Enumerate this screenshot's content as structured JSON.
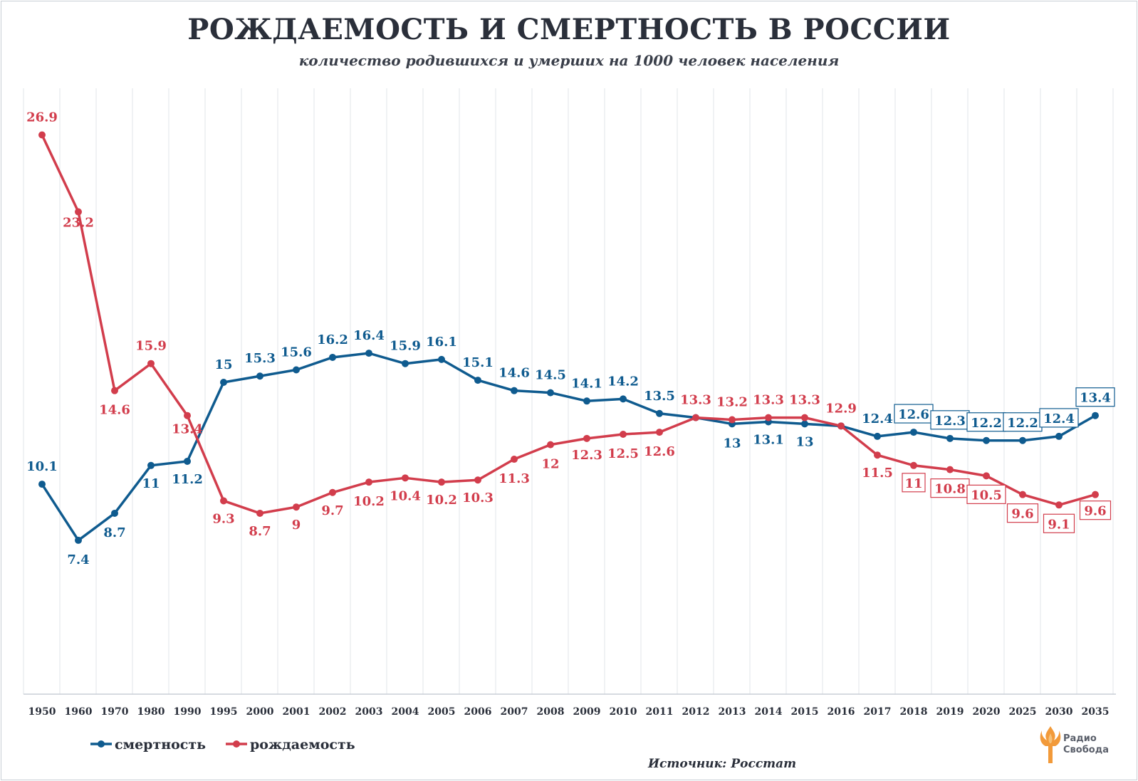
{
  "title": "РОЖДАЕМОСТЬ И СМЕРТНОСТЬ В РОССИИ",
  "subtitle": "количество родившихся и умерших на 1000 человек населения",
  "source": "Источник: Росстат",
  "brand": {
    "line1": "Радио",
    "line2": "Свобода",
    "icon": "torch-logo-icon"
  },
  "chart_data": {
    "type": "line",
    "title": "РОЖДАЕМОСТЬ И СМЕРТНОСТЬ В РОССИИ",
    "subtitle": "количество родившихся и умерших на 1000 человек населения",
    "xlabel": "",
    "ylabel": "",
    "ylim": [
      0,
      30
    ],
    "grid": "vertical",
    "legend": "bottom-left",
    "categories": [
      "1950",
      "1960",
      "1970",
      "1980",
      "1990",
      "1995",
      "2000",
      "2001",
      "2002",
      "2003",
      "2004",
      "2005",
      "2006",
      "2007",
      "2008",
      "2009",
      "2010",
      "2011",
      "2012",
      "2013",
      "2014",
      "2015",
      "2016",
      "2017",
      "2018",
      "2019",
      "2020",
      "2025",
      "2030",
      "2035"
    ],
    "series": [
      {
        "name": "смертность",
        "color": "#0f5b8f",
        "values": [
          10.1,
          7.4,
          8.7,
          11,
          11.2,
          15,
          15.3,
          15.6,
          16.2,
          16.4,
          15.9,
          16.1,
          15.1,
          14.6,
          14.5,
          14.1,
          14.2,
          13.5,
          13.3,
          13,
          13.1,
          13,
          12.9,
          12.4,
          12.6,
          12.3,
          12.2,
          12.2,
          12.4,
          13.4
        ],
        "labels": [
          "10.1",
          "7.4",
          "8.7",
          "11",
          "11.2",
          "15",
          "15.3",
          "15.6",
          "16.2",
          "16.4",
          "15.9",
          "16.1",
          "15.1",
          "14.6",
          "14.5",
          "14.1",
          "14.2",
          "13.5",
          "",
          "13",
          "13.1",
          "13",
          "",
          "12.4",
          "12.6",
          "12.3",
          "12.2",
          "12.2",
          "12.4",
          "13.4"
        ],
        "boxed_labels_from": "2018"
      },
      {
        "name": "рождаемость",
        "color": "#d23d4c",
        "values": [
          26.9,
          23.2,
          14.6,
          15.9,
          13.4,
          9.3,
          8.7,
          9,
          9.7,
          10.2,
          10.4,
          10.2,
          10.3,
          11.3,
          12,
          12.3,
          12.5,
          12.6,
          13.3,
          13.2,
          13.3,
          13.3,
          12.9,
          11.5,
          11,
          10.8,
          10.5,
          9.6,
          9.1,
          9.6
        ],
        "labels": [
          "26.9",
          "23.2",
          "14.6",
          "15.9",
          "13.4",
          "9.3",
          "8.7",
          "9",
          "9.7",
          "10.2",
          "10.4",
          "10.2",
          "10.3",
          "11.3",
          "12",
          "12.3",
          "12.5",
          "12.6",
          "13.3",
          "13.2",
          "13.3",
          "13.3",
          "12.9",
          "11.5",
          "11",
          "10.8",
          "10.5",
          "9.6",
          "9.1",
          "9.6"
        ],
        "boxed_labels_from": "2018"
      }
    ]
  }
}
